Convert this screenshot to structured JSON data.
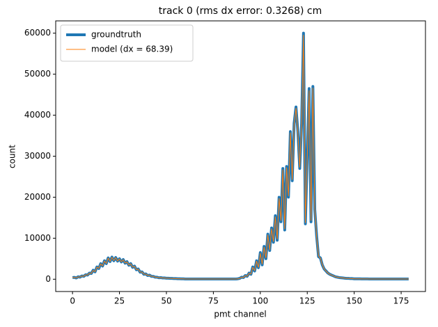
{
  "chart_data": {
    "type": "line",
    "title": "track 0 (rms dx error: 0.3268) cm",
    "x_label": "pmt channel",
    "y_label": "count",
    "x": [
      0,
      1,
      2,
      3,
      4,
      5,
      6,
      7,
      8,
      9,
      10,
      11,
      12,
      13,
      14,
      15,
      16,
      17,
      18,
      19,
      20,
      21,
      22,
      23,
      24,
      25,
      26,
      27,
      28,
      29,
      30,
      31,
      32,
      33,
      34,
      35,
      36,
      37,
      38,
      39,
      40,
      41,
      42,
      43,
      44,
      45,
      46,
      47,
      48,
      49,
      50,
      51,
      52,
      53,
      54,
      55,
      56,
      57,
      58,
      59,
      60,
      61,
      62,
      63,
      64,
      65,
      66,
      67,
      68,
      69,
      70,
      71,
      72,
      73,
      74,
      75,
      76,
      77,
      78,
      79,
      80,
      81,
      82,
      83,
      84,
      85,
      86,
      87,
      88,
      89,
      90,
      91,
      92,
      93,
      94,
      95,
      96,
      97,
      98,
      99,
      100,
      101,
      102,
      103,
      104,
      105,
      106,
      107,
      108,
      109,
      110,
      111,
      112,
      113,
      114,
      115,
      116,
      117,
      118,
      119,
      120,
      121,
      122,
      123,
      124,
      125,
      126,
      127,
      128,
      129,
      130,
      131,
      132,
      133,
      134,
      135,
      136,
      137,
      138,
      139,
      140,
      141,
      142,
      143,
      144,
      145,
      146,
      147,
      148,
      149,
      150,
      151,
      152,
      153,
      154,
      155,
      156,
      157,
      158,
      159,
      160,
      161,
      162,
      163,
      164,
      165,
      166,
      167,
      168,
      169,
      170,
      171,
      172,
      173,
      174,
      175,
      176,
      177,
      178,
      179
    ],
    "series": [
      {
        "name": "groundtruth",
        "color": "#1f77b4",
        "width": 4,
        "values": [
          400,
          450,
          300,
          600,
          500,
          800,
          700,
          1100,
          1000,
          1500,
          1400,
          2200,
          1800,
          3000,
          2600,
          3800,
          3200,
          4500,
          3800,
          5200,
          4300,
          5400,
          4500,
          5300,
          4400,
          5000,
          4200,
          4800,
          3900,
          4300,
          3400,
          3800,
          2900,
          3200,
          2300,
          2500,
          1700,
          1800,
          1200,
          1300,
          900,
          1000,
          700,
          700,
          500,
          500,
          350,
          400,
          300,
          300,
          250,
          250,
          200,
          200,
          150,
          150,
          120,
          120,
          100,
          100,
          50,
          50,
          50,
          50,
          50,
          50,
          50,
          50,
          50,
          50,
          50,
          50,
          50,
          50,
          50,
          50,
          50,
          50,
          50,
          50,
          50,
          50,
          50,
          50,
          50,
          50,
          50,
          50,
          100,
          200,
          500,
          400,
          900,
          700,
          1500,
          1200,
          3000,
          2000,
          4500,
          2800,
          6500,
          3500,
          8000,
          5000,
          11000,
          7000,
          12500,
          9000,
          15500,
          9500,
          20000,
          14000,
          27000,
          12000,
          27500,
          20000,
          36000,
          24000,
          38000,
          42000,
          36000,
          27000,
          38000,
          60000,
          13500,
          30000,
          46500,
          14000,
          47000,
          17000,
          10500,
          5500,
          5200,
          3500,
          2500,
          2000,
          1500,
          1200,
          1000,
          800,
          600,
          500,
          400,
          350,
          300,
          250,
          200,
          200,
          150,
          150,
          100,
          100,
          90,
          90,
          80,
          80,
          70,
          70,
          60,
          60,
          50,
          50,
          50,
          50,
          50,
          50,
          50,
          50,
          50,
          50,
          50,
          50,
          50,
          50,
          50,
          50,
          50,
          50,
          50,
          50
        ]
      },
      {
        "name": "model (dx = 68.39)",
        "color": "#ff7f0e",
        "width": 1,
        "values": [
          420,
          440,
          320,
          580,
          520,
          780,
          720,
          1080,
          1020,
          1480,
          1420,
          2150,
          1850,
          2950,
          2650,
          3750,
          3250,
          4450,
          3850,
          5150,
          4350,
          5350,
          4550,
          5250,
          4450,
          4950,
          4250,
          4750,
          3950,
          4250,
          3450,
          3750,
          2950,
          3150,
          2350,
          2450,
          1750,
          1750,
          1250,
          1250,
          950,
          950,
          720,
          680,
          520,
          480,
          360,
          390,
          310,
          290,
          250,
          250,
          200,
          200,
          150,
          150,
          120,
          120,
          100,
          100,
          50,
          50,
          50,
          50,
          50,
          50,
          50,
          50,
          50,
          50,
          50,
          50,
          50,
          50,
          50,
          50,
          50,
          50,
          50,
          50,
          50,
          50,
          50,
          50,
          50,
          50,
          50,
          50,
          100,
          200,
          480,
          420,
          880,
          720,
          1450,
          1250,
          2900,
          2100,
          4400,
          2900,
          6300,
          3700,
          7800,
          5200,
          10800,
          7200,
          12300,
          9200,
          15200,
          9800,
          19700,
          14300,
          26700,
          12300,
          27200,
          20300,
          35700,
          24300,
          37700,
          41700,
          35700,
          27300,
          37700,
          59500,
          13800,
          29700,
          46000,
          14300,
          46600,
          17300,
          10300,
          5700,
          5100,
          3600,
          2500,
          2000,
          1500,
          1200,
          1000,
          800,
          600,
          500,
          400,
          350,
          300,
          250,
          200,
          200,
          150,
          150,
          100,
          100,
          90,
          90,
          80,
          80,
          70,
          70,
          60,
          60,
          50,
          50,
          50,
          50,
          50,
          50,
          50,
          50,
          50,
          50,
          50,
          50,
          50,
          50,
          50,
          50,
          50,
          50,
          50,
          50
        ]
      }
    ],
    "xlim": [
      -8.95,
      187.95
    ],
    "ylim": [
      -3000,
      63000
    ],
    "xticks": [
      0,
      25,
      50,
      75,
      100,
      125,
      150,
      175
    ],
    "yticks": [
      0,
      10000,
      20000,
      30000,
      40000,
      50000,
      60000
    ],
    "grid": false,
    "legend": "upper left"
  }
}
